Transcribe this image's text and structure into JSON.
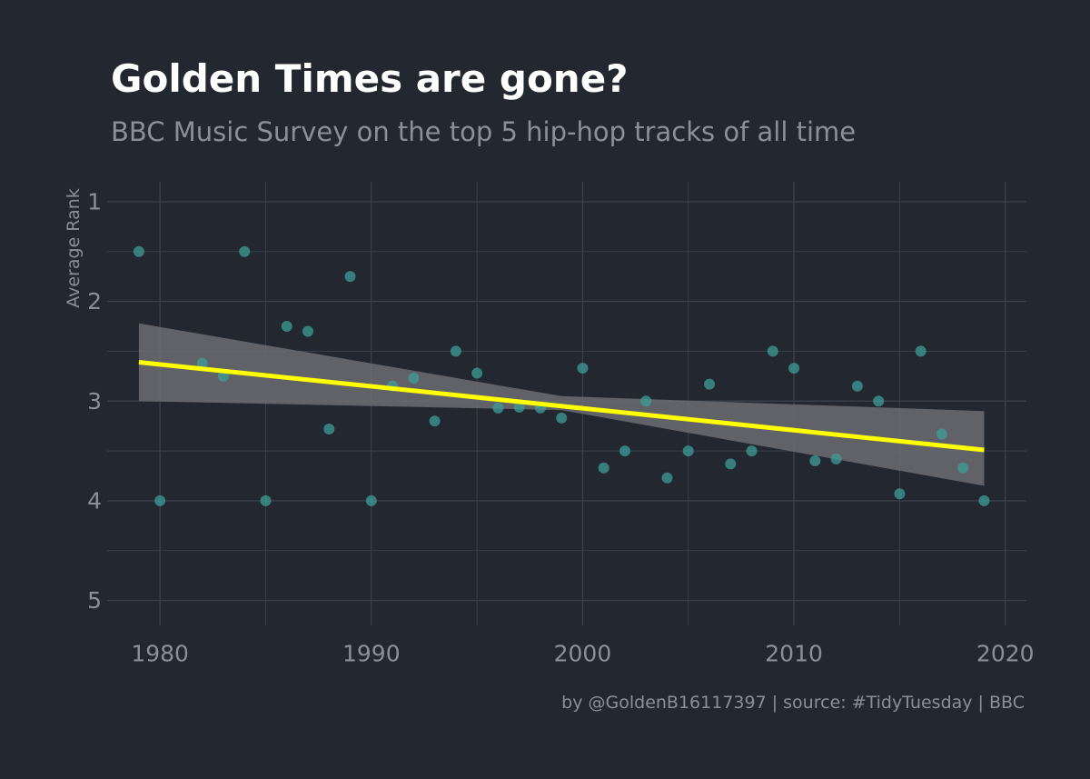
{
  "colors": {
    "background": "#232730",
    "grid": "#3b3f49",
    "text_muted": "#8b8f99",
    "title": "#ffffff",
    "points": "#3d9e95",
    "trend": "#ffff00",
    "confidence_band": "#6b6d71"
  },
  "chart_data": {
    "type": "scatter",
    "title": "Golden Times are gone?",
    "subtitle": "BBC Music Survey on the top 5 hip-hop tracks of all time",
    "caption": "by @GoldenB16117397 | source: #TidyTuesday | BBC",
    "xlabel": "",
    "ylabel": "Average Rank",
    "xlim": [
      1977.5,
      2021
    ],
    "ylim": [
      1,
      5
    ],
    "y_reversed": true,
    "grid": true,
    "x_ticks": [
      1980,
      1990,
      2000,
      2010,
      2020
    ],
    "y_ticks": [
      1,
      2,
      3,
      4,
      5
    ],
    "series": [
      {
        "points": [
          [
            1979,
            1.5
          ],
          [
            1980,
            4.0
          ],
          [
            1982,
            2.62
          ],
          [
            1983,
            2.75
          ],
          [
            1984,
            1.5
          ],
          [
            1985,
            4.0
          ],
          [
            1986,
            2.25
          ],
          [
            1987,
            2.3
          ],
          [
            1988,
            3.28
          ],
          [
            1989,
            1.75
          ],
          [
            1990,
            4.0
          ],
          [
            1991,
            2.85
          ],
          [
            1992,
            2.77
          ],
          [
            1993,
            3.2
          ],
          [
            1994,
            2.5
          ],
          [
            1995,
            2.72
          ],
          [
            1996,
            3.07
          ],
          [
            1997,
            3.06
          ],
          [
            1998,
            3.07
          ],
          [
            1999,
            3.17
          ],
          [
            2000,
            2.67
          ],
          [
            2001,
            3.67
          ],
          [
            2002,
            3.5
          ],
          [
            2003,
            3.0
          ],
          [
            2004,
            3.77
          ],
          [
            2005,
            3.5
          ],
          [
            2006,
            2.83
          ],
          [
            2007,
            3.63
          ],
          [
            2008,
            3.5
          ],
          [
            2009,
            2.5
          ],
          [
            2010,
            2.67
          ],
          [
            2011,
            3.6
          ],
          [
            2012,
            3.58
          ],
          [
            2013,
            2.85
          ],
          [
            2014,
            3.0
          ],
          [
            2015,
            3.93
          ],
          [
            2016,
            2.5
          ],
          [
            2017,
            3.33
          ],
          [
            2018,
            3.67
          ],
          [
            2019,
            4.0
          ]
        ]
      }
    ],
    "trend_line": {
      "x": [
        1979,
        2019
      ],
      "y": [
        2.61,
        3.49
      ],
      "band_upper": [
        [
          1979,
          2.22
        ],
        [
          1999,
          2.95
        ],
        [
          2019,
          3.1
        ]
      ],
      "band_lower": [
        [
          1979,
          3.0
        ],
        [
          1999,
          3.09
        ],
        [
          2019,
          3.85
        ]
      ]
    }
  }
}
